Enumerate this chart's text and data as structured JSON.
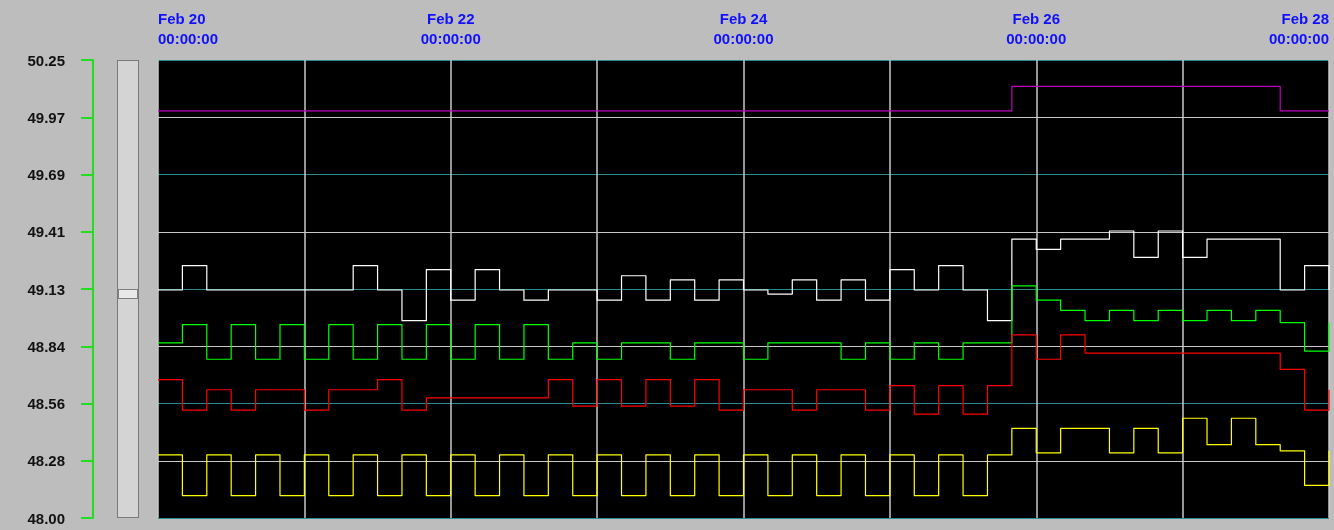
{
  "chart_data": {
    "type": "step",
    "x": [
      "--02-20T00:00",
      "--02-20T04:00",
      "--02-20T08:00",
      "--02-20T12:00",
      "--02-20T16:00",
      "--02-20T20:00",
      "--02-21T00:00",
      "--02-21T04:00",
      "--02-21T08:00",
      "--02-21T12:00",
      "--02-21T16:00",
      "--02-21T20:00",
      "--02-22T00:00",
      "--02-22T04:00",
      "--02-22T08:00",
      "--02-22T12:00",
      "--02-22T16:00",
      "--02-22T20:00",
      "--02-23T00:00",
      "--02-23T04:00",
      "--02-23T08:00",
      "--02-23T12:00",
      "--02-23T16:00",
      "--02-23T20:00",
      "--02-24T00:00",
      "--02-24T04:00",
      "--02-24T08:00",
      "--02-24T12:00",
      "--02-24T16:00",
      "--02-24T20:00",
      "--02-25T00:00",
      "--02-25T04:00",
      "--02-25T08:00",
      "--02-25T12:00",
      "--02-25T16:00",
      "--02-25T20:00",
      "--02-26T00:00",
      "--02-26T04:00",
      "--02-26T08:00",
      "--02-26T12:00",
      "--02-26T16:00",
      "--02-26T20:00",
      "--02-27T00:00",
      "--02-27T04:00",
      "--02-27T08:00",
      "--02-27T12:00",
      "--02-27T16:00",
      "--02-27T20:00",
      "--02-28T00:00"
    ],
    "series": [
      {
        "color": "#c000c0",
        "values": [
          50.0,
          50.0,
          50.0,
          50.0,
          50.0,
          50.0,
          50.0,
          50.0,
          50.0,
          50.0,
          50.0,
          50.0,
          50.0,
          50.0,
          50.0,
          50.0,
          50.0,
          50.0,
          50.0,
          50.0,
          50.0,
          50.0,
          50.0,
          50.0,
          50.0,
          50.0,
          50.0,
          50.0,
          50.0,
          50.0,
          50.0,
          50.0,
          50.0,
          50.0,
          50.0,
          50.12,
          50.12,
          50.12,
          50.12,
          50.12,
          50.12,
          50.12,
          50.12,
          50.12,
          50.12,
          50.12,
          50.0,
          50.0,
          50.0
        ]
      },
      {
        "color": "#ffffff",
        "values": [
          49.12,
          49.24,
          49.12,
          49.12,
          49.12,
          49.12,
          49.12,
          49.12,
          49.24,
          49.12,
          48.97,
          49.22,
          49.07,
          49.22,
          49.12,
          49.07,
          49.12,
          49.12,
          49.07,
          49.19,
          49.07,
          49.17,
          49.07,
          49.17,
          49.12,
          49.1,
          49.17,
          49.07,
          49.17,
          49.07,
          49.22,
          49.12,
          49.24,
          49.12,
          48.97,
          49.37,
          49.32,
          49.37,
          49.37,
          49.41,
          49.28,
          49.41,
          49.28,
          49.37,
          49.37,
          49.37,
          49.12,
          49.24,
          49.12
        ]
      },
      {
        "color": "#00ff00",
        "values": [
          48.86,
          48.95,
          48.78,
          48.95,
          48.78,
          48.95,
          48.78,
          48.95,
          48.78,
          48.95,
          48.78,
          48.95,
          48.78,
          48.95,
          48.78,
          48.95,
          48.78,
          48.86,
          48.78,
          48.86,
          48.86,
          48.78,
          48.86,
          48.86,
          48.78,
          48.86,
          48.86,
          48.86,
          48.78,
          48.86,
          48.78,
          48.86,
          48.78,
          48.86,
          48.86,
          49.14,
          49.07,
          49.02,
          48.97,
          49.02,
          48.97,
          49.02,
          48.97,
          49.02,
          48.97,
          49.02,
          48.96,
          48.82,
          48.96
        ]
      },
      {
        "color": "#ff0000",
        "values": [
          48.68,
          48.53,
          48.63,
          48.53,
          48.63,
          48.63,
          48.53,
          48.63,
          48.63,
          48.68,
          48.53,
          48.59,
          48.59,
          48.59,
          48.59,
          48.59,
          48.68,
          48.55,
          48.68,
          48.55,
          48.68,
          48.55,
          48.68,
          48.53,
          48.63,
          48.63,
          48.53,
          48.63,
          48.63,
          48.53,
          48.65,
          48.51,
          48.65,
          48.51,
          48.65,
          48.9,
          48.78,
          48.9,
          48.81,
          48.81,
          48.81,
          48.81,
          48.81,
          48.81,
          48.81,
          48.81,
          48.73,
          48.53,
          48.63
        ]
      },
      {
        "color": "#ffff00",
        "values": [
          48.31,
          48.11,
          48.31,
          48.11,
          48.31,
          48.11,
          48.31,
          48.11,
          48.31,
          48.11,
          48.31,
          48.11,
          48.31,
          48.11,
          48.31,
          48.11,
          48.31,
          48.11,
          48.31,
          48.11,
          48.31,
          48.11,
          48.31,
          48.11,
          48.31,
          48.11,
          48.31,
          48.11,
          48.31,
          48.11,
          48.31,
          48.11,
          48.31,
          48.11,
          48.31,
          48.44,
          48.32,
          48.44,
          48.44,
          48.32,
          48.44,
          48.32,
          48.49,
          48.36,
          48.49,
          48.36,
          48.33,
          48.16,
          48.33
        ]
      }
    ],
    "xlim": [
      "--02-20T00:00",
      "--02-28T00:00"
    ],
    "xticks": [
      {
        "value": "--02-20T00:00",
        "label": "Feb 20\n00:00:00"
      },
      {
        "value": "--02-21T00:00",
        "label": null
      },
      {
        "value": "--02-22T00:00",
        "label": "Feb 22\n00:00:00"
      },
      {
        "value": "--02-23T00:00",
        "label": null
      },
      {
        "value": "--02-24T00:00",
        "label": "Feb 24\n00:00:00"
      },
      {
        "value": "--02-25T00:00",
        "label": null
      },
      {
        "value": "--02-26T00:00",
        "label": "Feb 26\n00:00:00"
      },
      {
        "value": "--02-27T00:00",
        "label": null
      },
      {
        "value": "--02-28T00:00",
        "label": "Feb 28\n00:00:00"
      }
    ],
    "ylim": [
      48.0,
      50.25
    ],
    "yticks": [
      {
        "value": 48.0,
        "label": "48.00"
      },
      {
        "value": 48.28125,
        "label": "48.28"
      },
      {
        "value": 48.5625,
        "label": "48.56"
      },
      {
        "value": 48.84375,
        "label": "48.84"
      },
      {
        "value": 49.125,
        "label": "49.13"
      },
      {
        "value": 49.40625,
        "label": "49.41"
      },
      {
        "value": 49.6875,
        "label": "49.69"
      },
      {
        "value": 49.96875,
        "label": "49.97"
      },
      {
        "value": 50.25,
        "label": "50.25"
      }
    ],
    "grid": true,
    "marker": "none",
    "line_style": "solid"
  }
}
